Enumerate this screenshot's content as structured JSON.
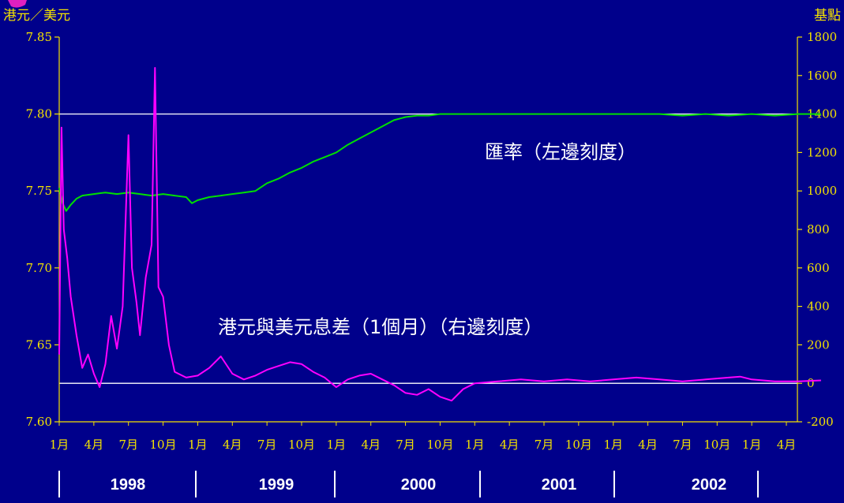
{
  "chart_data": {
    "type": "line",
    "left_axis": {
      "unit_label": "港元／美元",
      "range": [
        7.6,
        7.85
      ],
      "ticks": [
        "7.85",
        "7.80",
        "7.75",
        "7.70",
        "7.65",
        "7.60"
      ]
    },
    "right_axis": {
      "unit_label": "基點",
      "range": [
        -200,
        1800
      ],
      "ticks": [
        "1800",
        "1600",
        "1400",
        "1200",
        "1000",
        "800",
        "600",
        "400",
        "200",
        "0",
        "-200"
      ]
    },
    "x_month_labels": [
      "1月",
      "4月",
      "7月",
      "10月",
      "1月",
      "4月",
      "7月",
      "10月",
      "1月",
      "4月",
      "7月",
      "10月",
      "1月",
      "4月",
      "7月",
      "10月",
      "1月",
      "4月",
      "7月",
      "10月",
      "1月",
      "4月"
    ],
    "years": [
      "1998",
      "1999",
      "2000",
      "2001",
      "2002"
    ],
    "reference_lines": {
      "exchange_rate": 7.8,
      "spread_bps": 0
    },
    "colors": {
      "exchange_rate": "#00e000",
      "spread": "#ff00ff",
      "ref_line": "#ffffff",
      "axis": "#f5e300"
    },
    "series": [
      {
        "axis": "left",
        "annotation": "匯率（左邊刻度）",
        "points": [
          [
            0,
            7.752
          ],
          [
            0.3,
            7.742
          ],
          [
            0.6,
            7.737
          ],
          [
            1,
            7.741
          ],
          [
            1.5,
            7.745
          ],
          [
            2,
            7.747
          ],
          [
            3,
            7.748
          ],
          [
            4,
            7.749
          ],
          [
            5,
            7.748
          ],
          [
            6,
            7.749
          ],
          [
            7,
            7.748
          ],
          [
            8,
            7.747
          ],
          [
            9,
            7.748
          ],
          [
            10,
            7.747
          ],
          [
            11,
            7.746
          ],
          [
            11.5,
            7.742
          ],
          [
            12,
            7.744
          ],
          [
            13,
            7.746
          ],
          [
            14,
            7.747
          ],
          [
            15,
            7.748
          ],
          [
            16,
            7.749
          ],
          [
            17,
            7.75
          ],
          [
            18,
            7.755
          ],
          [
            19,
            7.758
          ],
          [
            20,
            7.762
          ],
          [
            21,
            7.765
          ],
          [
            22,
            7.769
          ],
          [
            23,
            7.772
          ],
          [
            24,
            7.775
          ],
          [
            25,
            7.78
          ],
          [
            26,
            7.784
          ],
          [
            27,
            7.788
          ],
          [
            28,
            7.792
          ],
          [
            29,
            7.796
          ],
          [
            30,
            7.798
          ],
          [
            31,
            7.799
          ],
          [
            32,
            7.799
          ],
          [
            33,
            7.8
          ],
          [
            34,
            7.8
          ],
          [
            36,
            7.8
          ],
          [
            40,
            7.8
          ],
          [
            44,
            7.8
          ],
          [
            48,
            7.8
          ],
          [
            52,
            7.8
          ],
          [
            54,
            7.799
          ],
          [
            56,
            7.8
          ],
          [
            58,
            7.799
          ],
          [
            60,
            7.8
          ],
          [
            62,
            7.799
          ],
          [
            64,
            7.8
          ],
          [
            66,
            7.8
          ]
        ]
      },
      {
        "axis": "right",
        "annotation": "港元與美元息差（1個月）（右邊刻度）",
        "points": [
          [
            0,
            150
          ],
          [
            0.2,
            1330
          ],
          [
            0.4,
            800
          ],
          [
            0.7,
            650
          ],
          [
            1,
            450
          ],
          [
            1.5,
            250
          ],
          [
            2,
            80
          ],
          [
            2.5,
            150
          ],
          [
            3,
            50
          ],
          [
            3.5,
            -20
          ],
          [
            4,
            100
          ],
          [
            4.5,
            350
          ],
          [
            5,
            180
          ],
          [
            5.5,
            400
          ],
          [
            6,
            1290
          ],
          [
            6.3,
            600
          ],
          [
            6.7,
            420
          ],
          [
            7,
            250
          ],
          [
            7.5,
            550
          ],
          [
            8,
            720
          ],
          [
            8.3,
            1640
          ],
          [
            8.6,
            500
          ],
          [
            9,
            450
          ],
          [
            9.5,
            200
          ],
          [
            10,
            60
          ],
          [
            11,
            30
          ],
          [
            12,
            40
          ],
          [
            13,
            80
          ],
          [
            14,
            140
          ],
          [
            15,
            50
          ],
          [
            16,
            20
          ],
          [
            17,
            40
          ],
          [
            18,
            70
          ],
          [
            19,
            90
          ],
          [
            20,
            110
          ],
          [
            21,
            100
          ],
          [
            22,
            60
          ],
          [
            23,
            30
          ],
          [
            24,
            -20
          ],
          [
            25,
            20
          ],
          [
            26,
            40
          ],
          [
            27,
            50
          ],
          [
            28,
            20
          ],
          [
            29,
            -10
          ],
          [
            30,
            -50
          ],
          [
            31,
            -60
          ],
          [
            32,
            -30
          ],
          [
            33,
            -70
          ],
          [
            34,
            -90
          ],
          [
            35,
            -30
          ],
          [
            36,
            0
          ],
          [
            38,
            10
          ],
          [
            40,
            20
          ],
          [
            42,
            10
          ],
          [
            44,
            20
          ],
          [
            46,
            10
          ],
          [
            48,
            20
          ],
          [
            50,
            30
          ],
          [
            52,
            20
          ],
          [
            54,
            10
          ],
          [
            56,
            20
          ],
          [
            58,
            30
          ],
          [
            59,
            35
          ],
          [
            60,
            20
          ],
          [
            62,
            10
          ],
          [
            64,
            10
          ],
          [
            66,
            15
          ]
        ]
      }
    ]
  }
}
